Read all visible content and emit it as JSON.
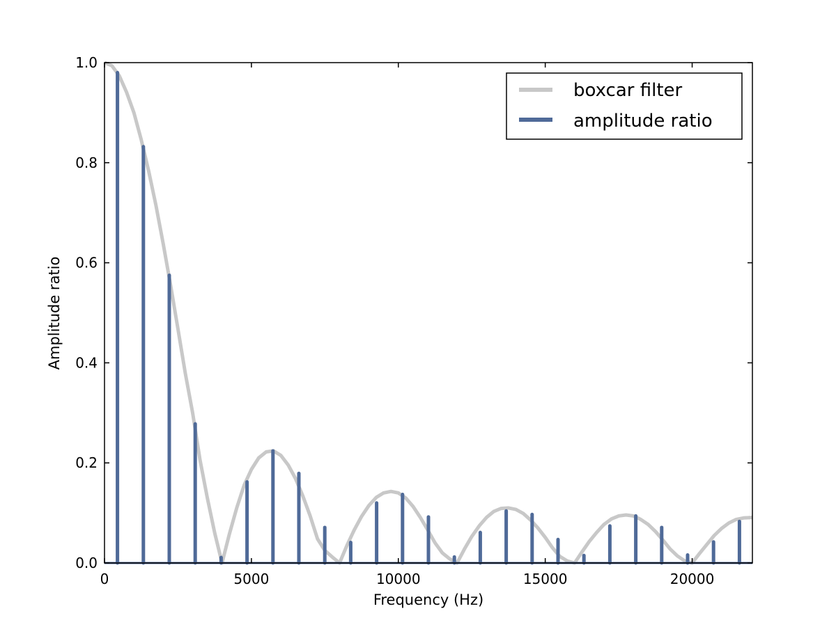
{
  "chart_data": {
    "type": "line",
    "title": "",
    "xlabel": "Frequency (Hz)",
    "ylabel": "Amplitude ratio",
    "xlim": [
      0,
      22050
    ],
    "ylim": [
      0.0,
      1.0
    ],
    "x_ticks": [
      0,
      5000,
      10000,
      15000,
      20000
    ],
    "x_tick_labels": [
      "0",
      "5000",
      "10000",
      "15000",
      "20000"
    ],
    "y_ticks": [
      0.0,
      0.2,
      0.4,
      0.6,
      0.8,
      1.0
    ],
    "y_tick_labels": [
      "0.0",
      "0.2",
      "0.4",
      "0.6",
      "0.8",
      "1.0"
    ],
    "grid": false,
    "legend_position": "top-right",
    "series": [
      {
        "name": "boxcar filter",
        "kind": "curve",
        "color": "#c8c8c8",
        "x": [
          0,
          250,
          500,
          750,
          1000,
          1250,
          1500,
          1750,
          2000,
          2250,
          2500,
          2750,
          3000,
          3250,
          3500,
          3750,
          4000,
          4250,
          4500,
          4750,
          5000,
          5250,
          5500,
          5750,
          6000,
          6250,
          6500,
          6750,
          7000,
          7250,
          7500,
          7750,
          8000,
          8250,
          8500,
          8750,
          9000,
          9250,
          9500,
          9750,
          10000,
          10250,
          10500,
          10750,
          11000,
          11250,
          11500,
          11750,
          12000,
          12250,
          12500,
          12750,
          13000,
          13250,
          13500,
          13750,
          14000,
          14250,
          14500,
          14750,
          15000,
          15250,
          15500,
          15750,
          16000,
          16250,
          16500,
          16750,
          17000,
          17250,
          17500,
          17750,
          18000,
          18250,
          18500,
          18750,
          19000,
          19250,
          19500,
          19750,
          20000,
          20250,
          20500,
          20750,
          21000,
          21250,
          21500,
          21750,
          22050
        ],
        "y": [
          1.0,
          0.994,
          0.974,
          0.941,
          0.9,
          0.846,
          0.784,
          0.715,
          0.637,
          0.555,
          0.468,
          0.379,
          0.3,
          0.206,
          0.13,
          0.06,
          0.0,
          0.058,
          0.11,
          0.155,
          0.187,
          0.21,
          0.222,
          0.224,
          0.215,
          0.196,
          0.169,
          0.134,
          0.094,
          0.048,
          0.025,
          0.012,
          0.0,
          0.035,
          0.066,
          0.093,
          0.115,
          0.131,
          0.14,
          0.143,
          0.14,
          0.13,
          0.113,
          0.091,
          0.066,
          0.04,
          0.02,
          0.008,
          0.0,
          0.028,
          0.053,
          0.074,
          0.091,
          0.103,
          0.109,
          0.11,
          0.107,
          0.099,
          0.086,
          0.07,
          0.051,
          0.03,
          0.013,
          0.004,
          0.0,
          0.022,
          0.043,
          0.061,
          0.077,
          0.088,
          0.094,
          0.096,
          0.094,
          0.087,
          0.077,
          0.063,
          0.046,
          0.028,
          0.014,
          0.004,
          0.0,
          0.019,
          0.037,
          0.055,
          0.069,
          0.08,
          0.087,
          0.09,
          0.091
        ]
      },
      {
        "name": "amplitude ratio",
        "kind": "stem",
        "color": "#4f6a98",
        "x": [
          441,
          1323,
          2205,
          3087,
          3969,
          4851,
          5733,
          6615,
          7497,
          8379,
          9261,
          10143,
          11025,
          11907,
          12789,
          13671,
          14553,
          15435,
          16317,
          17199,
          18081,
          18963,
          19845,
          20727,
          21609
        ],
        "y": [
          0.98,
          0.832,
          0.575,
          0.278,
          0.011,
          0.162,
          0.224,
          0.179,
          0.071,
          0.041,
          0.12,
          0.137,
          0.092,
          0.012,
          0.061,
          0.104,
          0.097,
          0.047,
          0.015,
          0.074,
          0.094,
          0.071,
          0.016,
          0.042,
          0.083
        ]
      }
    ]
  }
}
